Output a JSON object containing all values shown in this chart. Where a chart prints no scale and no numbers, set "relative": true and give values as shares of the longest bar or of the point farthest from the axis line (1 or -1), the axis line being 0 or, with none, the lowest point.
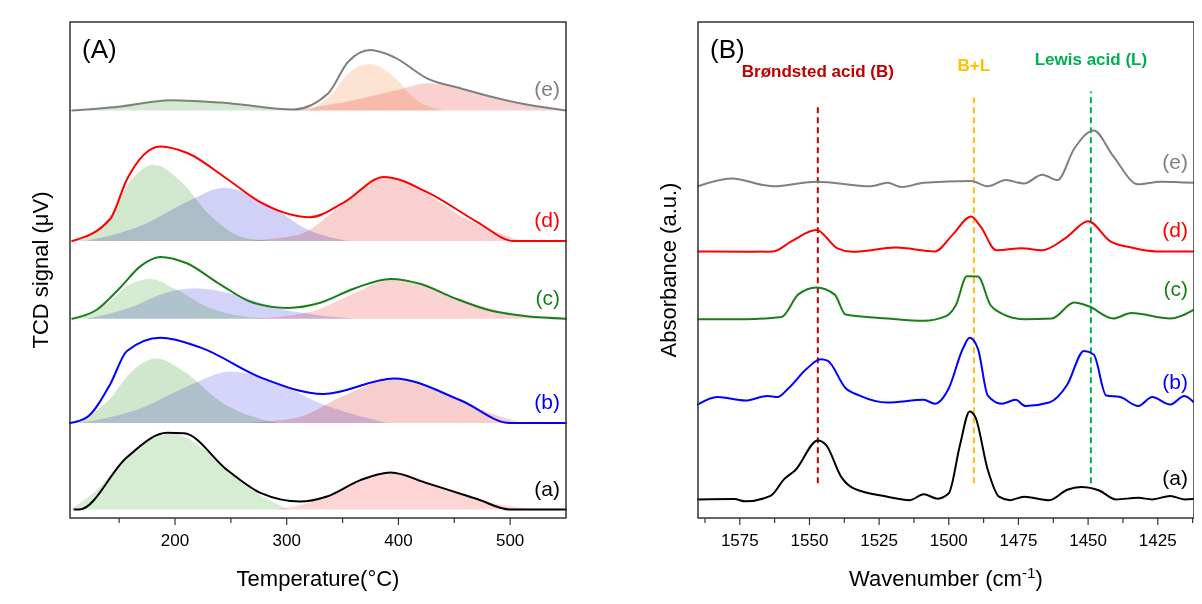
{
  "chart_data": [
    {
      "type": "line",
      "xlabel": "Temperature(°C)",
      "ylabel": "TCD signal (μV)",
      "annotations": [
        "(A)"
      ],
      "relative": true,
      "xlim": [
        106,
        550
      ],
      "xticks": [
        {
          "value": 150,
          "label": null
        },
        200,
        {
          "value": 250,
          "label": null
        },
        300,
        {
          "value": 350,
          "label": null
        },
        400,
        {
          "value": 450,
          "label": null
        },
        500
      ],
      "tick_labels": "x",
      "series": [
        {
          "type": "area",
          "color": "#c8e4c4",
          "x": [
            110,
            150,
            196,
            250,
            300,
            330
          ],
          "values": [
            0.871,
            0.882,
            0.892,
            0.885,
            0.874,
            0.871
          ]
        },
        {
          "type": "area",
          "color": "#fcdcc6",
          "x": [
            320,
            340,
            355,
            375,
            395,
            415,
            441
          ],
          "values": [
            0.871,
            0.905,
            0.95,
            0.97,
            0.945,
            0.895,
            0.871
          ]
        },
        {
          "type": "area",
          "color": "#f9c6c6",
          "x": [
            300,
            350,
            400,
            426,
            460,
            500,
            550
          ],
          "values": [
            0.871,
            0.888,
            0.915,
            0.929,
            0.915,
            0.89,
            0.872
          ]
        },
        {
          "type": "area",
          "color": "#c6e2c2",
          "x": [
            110,
            140,
            160,
            181,
            205,
            230,
            260,
            285
          ],
          "values": [
            0.592,
            0.64,
            0.72,
            0.755,
            0.72,
            0.65,
            0.6,
            0.592
          ]
        },
        {
          "type": "area",
          "color": "#c6c6f6",
          "x": [
            120,
            170,
            210,
            244,
            280,
            320,
            355
          ],
          "values": [
            0.592,
            0.625,
            0.675,
            0.706,
            0.675,
            0.615,
            0.592
          ]
        },
        {
          "type": "area",
          "color": "#f7c4c4",
          "x": [
            260,
            310,
            350,
            387,
            420,
            460,
            510
          ],
          "values": [
            0.592,
            0.605,
            0.67,
            0.727,
            0.7,
            0.64,
            0.592
          ]
        },
        {
          "type": "area",
          "color": "#cae6c6",
          "x": [
            110,
            140,
            160,
            178,
            200,
            230,
            280
          ],
          "values": [
            0.426,
            0.46,
            0.5,
            0.511,
            0.49,
            0.45,
            0.426
          ]
        },
        {
          "type": "area",
          "color": "#c8c8f8",
          "x": [
            120,
            160,
            190,
            217,
            250,
            290,
            360
          ],
          "values": [
            0.426,
            0.45,
            0.48,
            0.491,
            0.48,
            0.45,
            0.426
          ]
        },
        {
          "type": "area",
          "color": "#fbc8c8",
          "x": [
            270,
            320,
            360,
            393,
            430,
            470,
            530
          ],
          "values": [
            0.426,
            0.44,
            0.48,
            0.509,
            0.49,
            0.455,
            0.426
          ]
        },
        {
          "type": "area",
          "color": "#c4e0c0",
          "x": [
            108,
            140,
            160,
            183,
            210,
            240,
            290
          ],
          "values": [
            0.203,
            0.25,
            0.31,
            0.341,
            0.31,
            0.25,
            0.203
          ]
        },
        {
          "type": "area",
          "color": "#cacafa",
          "x": [
            115,
            170,
            210,
            250,
            290,
            330,
            390
          ],
          "values": [
            0.203,
            0.235,
            0.28,
            0.313,
            0.29,
            0.245,
            0.203
          ]
        },
        {
          "type": "area",
          "color": "#f5c2c2",
          "x": [
            260,
            310,
            350,
            396,
            430,
            470,
            510
          ],
          "values": [
            0.203,
            0.215,
            0.26,
            0.298,
            0.28,
            0.235,
            0.203
          ]
        },
        {
          "type": "area",
          "color": "#cce8c8",
          "x": [
            106,
            130,
            160,
            197,
            230,
            260,
            300
          ],
          "values": [
            0.018,
            0.06,
            0.14,
            0.18,
            0.14,
            0.075,
            0.02
          ]
        },
        {
          "type": "area",
          "color": "#fdcaca",
          "x": [
            290,
            330,
            360,
            393,
            430,
            470,
            520
          ],
          "values": [
            0.018,
            0.04,
            0.075,
            0.097,
            0.075,
            0.04,
            0.018
          ]
        },
        {
          "name": "(e)",
          "color": "#808080",
          "x": [
            108,
            150,
            196,
            250,
            306,
            337,
            355,
            375,
            396,
            426,
            456,
            485,
            516,
            550
          ],
          "values": [
            0.871,
            0.879,
            0.893,
            0.886,
            0.873,
            0.907,
            0.975,
            1.0,
            0.985,
            0.939,
            0.918,
            0.899,
            0.883,
            0.871
          ]
        },
        {
          "name": "(d)",
          "color": "#ff0000",
          "x": [
            108,
            142,
            157,
            187,
            211,
            247,
            277,
            321,
            351,
            387,
            426,
            471,
            503,
            550
          ],
          "values": [
            0.592,
            0.639,
            0.724,
            0.794,
            0.78,
            0.724,
            0.674,
            0.643,
            0.674,
            0.729,
            0.696,
            0.632,
            0.592,
            0.592
          ]
        },
        {
          "name": "(c)",
          "color": "#1a7f1a",
          "x": [
            108,
            130,
            150,
            170,
            187,
            210,
            240,
            270,
            301,
            330,
            360,
            393,
            420,
            450,
            480,
            515,
            550
          ],
          "values": [
            0.426,
            0.445,
            0.49,
            0.54,
            0.558,
            0.545,
            0.5,
            0.46,
            0.449,
            0.46,
            0.49,
            0.511,
            0.5,
            0.47,
            0.445,
            0.431,
            0.426
          ]
        },
        {
          "name": "(b)",
          "color": "#0000ff",
          "x": [
            106,
            121,
            142,
            157,
            187,
            223,
            277,
            333,
            396,
            456,
            500,
            550
          ],
          "values": [
            0.203,
            0.215,
            0.286,
            0.357,
            0.385,
            0.364,
            0.3,
            0.265,
            0.298,
            0.251,
            0.203,
            0.203
          ]
        },
        {
          "name": "(a)",
          "color": "#000000",
          "x": [
            110,
            114,
            157,
            193,
            208,
            247,
            277,
            312,
            336,
            366,
            393,
            426,
            471,
            500,
            550
          ],
          "values": [
            0.018,
            0.018,
            0.13,
            0.182,
            0.181,
            0.102,
            0.053,
            0.035,
            0.046,
            0.081,
            0.097,
            0.074,
            0.04,
            0.018,
            0.018
          ]
        }
      ]
    },
    {
      "type": "line",
      "xlabel": "Wavenumber (cm$^{-1}$)",
      "ylabel": "Absorbance (a.u.)",
      "annotations": [
        "(B)"
      ],
      "relative": true,
      "xlim": [
        1590,
        1412
      ],
      "xticks": [
        {
          "value": 1587.5,
          "label": null
        },
        1575,
        {
          "value": 1562.5,
          "label": null
        },
        1550,
        {
          "value": 1537.5,
          "label": null
        },
        1525,
        {
          "value": 1512.5,
          "label": null
        },
        1500,
        {
          "value": 1487.5,
          "label": null
        },
        1475,
        {
          "value": 1462.5,
          "label": null
        },
        1450,
        {
          "value": 1437.5,
          "label": null
        },
        1425,
        {
          "value": 1412.5,
          "label": null
        }
      ],
      "tick_labels": "x",
      "ref_lines": [
        {
          "axis": "x",
          "value": 1547,
          "label": "Brøndsted acid (B)",
          "color": "#c00000",
          "line_style": "dashed"
        },
        {
          "axis": "x",
          "value": 1491,
          "label": "B+L",
          "color": "#ffc000",
          "line_style": "dashed"
        },
        {
          "axis": "x",
          "value": 1449,
          "label": "Lewis acid (L)",
          "color": "#00b050",
          "line_style": "dashed"
        }
      ],
      "series": [
        {
          "name": "(e)",
          "color": "#808080",
          "x": [
            1590,
            1578,
            1563,
            1547.5,
            1528,
            1522,
            1517,
            1509,
            1492,
            1486,
            1479.5,
            1473,
            1466.5,
            1461,
            1455,
            1448,
            1441,
            1432,
            1424,
            1412
          ],
          "values": [
            0.856,
            0.876,
            0.856,
            0.868,
            0.856,
            0.865,
            0.854,
            0.865,
            0.87,
            0.856,
            0.872,
            0.863,
            0.886,
            0.872,
            0.953,
            1.0,
            0.934,
            0.861,
            0.868,
            0.865
          ]
        },
        {
          "name": "(d)",
          "color": "#ff0000",
          "x": [
            1590,
            1573,
            1563,
            1556.5,
            1547.5,
            1540,
            1534.5,
            1519,
            1505,
            1498.5,
            1492,
            1488.5,
            1483,
            1474,
            1466.5,
            1458,
            1450,
            1442,
            1434.5,
            1425.5,
            1412
          ],
          "values": [
            0.688,
            0.687,
            0.688,
            0.714,
            0.743,
            0.696,
            0.687,
            0.698,
            0.688,
            0.732,
            0.778,
            0.751,
            0.691,
            0.696,
            0.691,
            0.723,
            0.766,
            0.714,
            0.698,
            0.688,
            0.688
          ]
        },
        {
          "name": "(c)",
          "color": "#1a7f1a",
          "x": [
            1590,
            1573,
            1560,
            1554,
            1547.5,
            1541,
            1537,
            1522,
            1509,
            1501,
            1497.5,
            1493.5,
            1489.5,
            1485,
            1483,
            1473,
            1463,
            1455,
            1450,
            1441,
            1434.5,
            1420.5,
            1412
          ],
          "values": [
            0.513,
            0.513,
            0.519,
            0.577,
            0.595,
            0.577,
            0.525,
            0.515,
            0.509,
            0.521,
            0.549,
            0.624,
            0.623,
            0.549,
            0.536,
            0.513,
            0.515,
            0.556,
            0.547,
            0.515,
            0.529,
            0.515,
            0.538
          ]
        },
        {
          "name": "(b)",
          "color": "#0000ff",
          "x": [
            1590,
            1583,
            1573,
            1565,
            1561.5,
            1557.5,
            1551,
            1546,
            1543.5,
            1537,
            1532,
            1522,
            1509,
            1505,
            1500,
            1495,
            1492.5,
            1489.5,
            1486,
            1481,
            1476,
            1472.5,
            1464,
            1457.5,
            1451.5,
            1448,
            1443.5,
            1438.5,
            1432,
            1427,
            1420.5,
            1415.5,
            1412
          ],
          "values": [
            0.293,
            0.312,
            0.303,
            0.315,
            0.312,
            0.335,
            0.385,
            0.41,
            0.406,
            0.335,
            0.316,
            0.298,
            0.305,
            0.295,
            0.335,
            0.436,
            0.465,
            0.436,
            0.316,
            0.295,
            0.305,
            0.289,
            0.298,
            0.344,
            0.431,
            0.422,
            0.316,
            0.312,
            0.289,
            0.312,
            0.293,
            0.315,
            0.298
          ]
        },
        {
          "name": "(a)",
          "color": "#000000",
          "x": [
            1590,
            1577,
            1573,
            1564,
            1559,
            1555,
            1547,
            1544,
            1538.5,
            1534.5,
            1522,
            1514,
            1509,
            1504,
            1500,
            1496,
            1492.5,
            1490.5,
            1486,
            1482,
            1478,
            1473,
            1464,
            1457.5,
            1452.5,
            1446,
            1440,
            1432,
            1427,
            1420.5,
            1415.5,
            1412
          ],
          "values": [
            0.048,
            0.049,
            0.043,
            0.057,
            0.101,
            0.124,
            0.2,
            0.188,
            0.105,
            0.078,
            0.055,
            0.046,
            0.061,
            0.05,
            0.064,
            0.188,
            0.275,
            0.261,
            0.124,
            0.055,
            0.046,
            0.055,
            0.046,
            0.073,
            0.08,
            0.071,
            0.048,
            0.052,
            0.048,
            0.057,
            0.048,
            0.049
          ]
        }
      ]
    }
  ]
}
